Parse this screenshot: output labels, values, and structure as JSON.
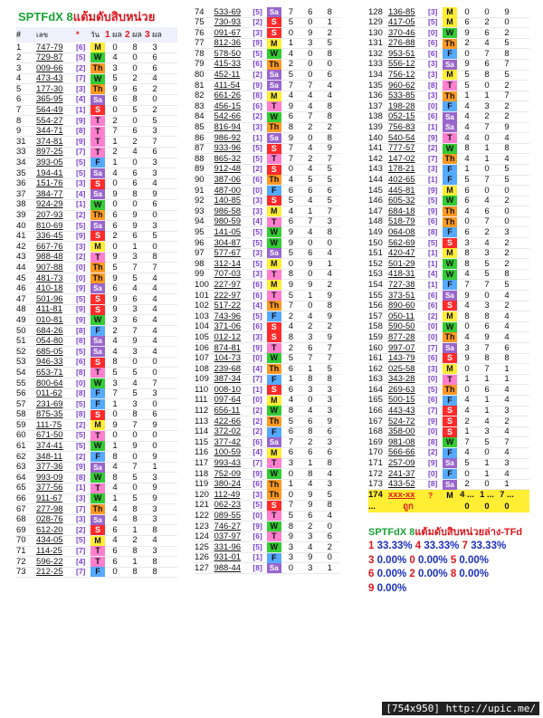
{
  "title_en": "SPTFdX 8",
  "title_th": "แต้มดับสิบหน่วย",
  "header": {
    "n": "#",
    "code": "เลข",
    "mark": "*",
    "day": "วัน",
    "p1": "1",
    "p1l": "ผล",
    "p2": "2",
    "p2l": "ผล",
    "p3": "3",
    "p3l": "ผล"
  },
  "day_colors": {
    "M": "#ffee33",
    "T": "#ff7fce",
    "W": "#33cc33",
    "Th": "#ff9922",
    "F": "#55aaff",
    "Sa": "#9966cc",
    "S": "#ff2a2a"
  },
  "col1": [
    [
      "1",
      "747-79",
      "[6]",
      "M",
      "0",
      "8",
      "3"
    ],
    [
      "2",
      "729-87",
      "[5]",
      "W",
      "4",
      "0",
      "6"
    ],
    [
      "3",
      "009-66",
      "[2]",
      "Th",
      "3",
      "0",
      "6"
    ],
    [
      "4",
      "473-43",
      "[7]",
      "W",
      "5",
      "2",
      "4"
    ],
    [
      "5",
      "177-30",
      "[3]",
      "Th",
      "9",
      "6",
      "2"
    ],
    [
      "6",
      "365-95",
      "[4]",
      "Sa",
      "6",
      "8",
      "0"
    ],
    [
      "7",
      "564-49",
      "[1]",
      "S",
      "0",
      "5",
      "2"
    ],
    [
      "8",
      "554-27",
      "[9]",
      "T",
      "2",
      "0",
      "5"
    ],
    [
      "9",
      "344-71",
      "[8]",
      "T",
      "7",
      "6",
      "3"
    ],
    [
      "31",
      "374-81",
      "[9]",
      "T",
      "1",
      "2",
      "7"
    ],
    [
      "33",
      "897-25",
      "[7]",
      "T",
      "2",
      "4",
      "6"
    ],
    [
      "34",
      "393-05",
      "[5]",
      "F",
      "1",
      "0",
      "3"
    ],
    [
      "35",
      "194-41",
      "[5]",
      "Sa",
      "4",
      "6",
      "3"
    ],
    [
      "36",
      "151-76",
      "[3]",
      "S",
      "0",
      "6",
      "4"
    ],
    [
      "37",
      "384-77",
      "[4]",
      "Sa",
      "9",
      "8",
      "9"
    ],
    [
      "38",
      "924-29",
      "[1]",
      "W",
      "0",
      "0",
      "6"
    ],
    [
      "39",
      "207-93",
      "[2]",
      "Th",
      "6",
      "9",
      "0"
    ],
    [
      "40",
      "810-69",
      "[5]",
      "Sa",
      "6",
      "9",
      "3"
    ],
    [
      "41",
      "336-45",
      "[9]",
      "S",
      "2",
      "6",
      "5"
    ],
    [
      "42",
      "667-76",
      "[3]",
      "M",
      "0",
      "1",
      "0"
    ],
    [
      "43",
      "988-48",
      "[2]",
      "T",
      "9",
      "3",
      "8"
    ],
    [
      "44",
      "907-88",
      "[0]",
      "Th",
      "5",
      "7",
      "7"
    ],
    [
      "45",
      "481-73",
      "[0]",
      "Th",
      "9",
      "5",
      "4"
    ],
    [
      "46",
      "410-18",
      "[9]",
      "Sa",
      "6",
      "4",
      "4"
    ],
    [
      "47",
      "501-96",
      "[5]",
      "S",
      "9",
      "6",
      "4"
    ],
    [
      "48",
      "411-81",
      "[9]",
      "S",
      "9",
      "3",
      "4"
    ],
    [
      "49",
      "010-81",
      "[9]",
      "W",
      "3",
      "6",
      "4"
    ],
    [
      "50",
      "684-26",
      "[8]",
      "F",
      "2",
      "7",
      "4"
    ],
    [
      "51",
      "054-80",
      "[8]",
      "Sa",
      "4",
      "9",
      "4"
    ],
    [
      "52",
      "685-05",
      "[5]",
      "Sa",
      "4",
      "3",
      "4"
    ],
    [
      "53",
      "946-33",
      "[6]",
      "S",
      "8",
      "0",
      "0"
    ],
    [
      "54",
      "653-71",
      "[8]",
      "T",
      "5",
      "5",
      "0"
    ],
    [
      "55",
      "800-64",
      "[0]",
      "W",
      "3",
      "4",
      "7"
    ],
    [
      "56",
      "011-62",
      "[8]",
      "F",
      "7",
      "5",
      "3"
    ],
    [
      "57",
      "231-69",
      "[5]",
      "F",
      "1",
      "3",
      "0"
    ],
    [
      "58",
      "875-35",
      "[8]",
      "S",
      "0",
      "8",
      "6"
    ],
    [
      "59",
      "111-75",
      "[2]",
      "M",
      "9",
      "7",
      "9"
    ],
    [
      "60",
      "671-50",
      "[5]",
      "T",
      "0",
      "0",
      "0"
    ],
    [
      "61",
      "374-41",
      "[5]",
      "W",
      "1",
      "9",
      "0"
    ],
    [
      "62",
      "348-11",
      "[2]",
      "F",
      "8",
      "0",
      "9"
    ],
    [
      "63",
      "377-36",
      "[9]",
      "Sa",
      "4",
      "7",
      "1"
    ],
    [
      "64",
      "993-09",
      "[8]",
      "W",
      "8",
      "5",
      "3"
    ],
    [
      "65",
      "377-56",
      "[1]",
      "T",
      "4",
      "0",
      "9"
    ],
    [
      "66",
      "911-67",
      "[3]",
      "W",
      "1",
      "5",
      "9"
    ],
    [
      "67",
      "277-98",
      "[7]",
      "Th",
      "4",
      "8",
      "3"
    ],
    [
      "68",
      "028-76",
      "[3]",
      "Sa",
      "4",
      "8",
      "3"
    ],
    [
      "69",
      "612-20",
      "[2]",
      "S",
      "6",
      "1",
      "8"
    ],
    [
      "70",
      "434-05",
      "[5]",
      "M",
      "4",
      "2",
      "4"
    ],
    [
      "71",
      "114-25",
      "[7]",
      "T",
      "6",
      "8",
      "3"
    ],
    [
      "72",
      "596-22",
      "[4]",
      "T",
      "6",
      "1",
      "8"
    ],
    [
      "73",
      "212-25",
      "[7]",
      "F",
      "0",
      "8",
      "8"
    ]
  ],
  "col2": [
    [
      "74",
      "533-69",
      "[5]",
      "Sa",
      "7",
      "6",
      "8"
    ],
    [
      "75",
      "730-93",
      "[2]",
      "S",
      "5",
      "0",
      "1"
    ],
    [
      "76",
      "091-67",
      "[3]",
      "S",
      "0",
      "9",
      "2"
    ],
    [
      "77",
      "812-36",
      "[9]",
      "M",
      "1",
      "3",
      "5"
    ],
    [
      "78",
      "578-50",
      "[5]",
      "W",
      "4",
      "0",
      "8"
    ],
    [
      "79",
      "415-33",
      "[6]",
      "Th",
      "2",
      "0",
      "0"
    ],
    [
      "80",
      "452-11",
      "[2]",
      "Sa",
      "5",
      "0",
      "6"
    ],
    [
      "81",
      "411-54",
      "[9]",
      "Sa",
      "7",
      "7",
      "4"
    ],
    [
      "82",
      "661-26",
      "[8]",
      "M",
      "4",
      "4",
      "4"
    ],
    [
      "83",
      "456-15",
      "[6]",
      "T",
      "9",
      "4",
      "8"
    ],
    [
      "84",
      "542-66",
      "[2]",
      "W",
      "6",
      "7",
      "8"
    ],
    [
      "85",
      "816-94",
      "[3]",
      "Th",
      "8",
      "2",
      "2"
    ],
    [
      "86",
      "986-92",
      "[1]",
      "Sa",
      "9",
      "0",
      "8"
    ],
    [
      "87",
      "933-96",
      "[5]",
      "S",
      "7",
      "4",
      "9"
    ],
    [
      "88",
      "865-32",
      "[5]",
      "T",
      "7",
      "2",
      "7"
    ],
    [
      "89",
      "912-48",
      "[2]",
      "S",
      "0",
      "4",
      "5"
    ],
    [
      "90",
      "387-06",
      "[6]",
      "Th",
      "4",
      "5",
      "5"
    ],
    [
      "91",
      "487-00",
      "[0]",
      "F",
      "6",
      "6",
      "6"
    ],
    [
      "92",
      "140-85",
      "[3]",
      "S",
      "5",
      "4",
      "5"
    ],
    [
      "93",
      "986-58",
      "[3]",
      "M",
      "4",
      "1",
      "7"
    ],
    [
      "94",
      "980-59",
      "[4]",
      "T",
      "6",
      "7",
      "3"
    ],
    [
      "95",
      "141-05",
      "[5]",
      "W",
      "9",
      "4",
      "8"
    ],
    [
      "96",
      "304-87",
      "[5]",
      "W",
      "9",
      "0",
      "0"
    ],
    [
      "97",
      "577-67",
      "[3]",
      "Sa",
      "5",
      "6",
      "4"
    ],
    [
      "98",
      "312-14",
      "[5]",
      "M",
      "0",
      "9",
      "1"
    ],
    [
      "99",
      "707-03",
      "[3]",
      "T",
      "8",
      "0",
      "4"
    ],
    [
      "100",
      "227-97",
      "[6]",
      "M",
      "9",
      "9",
      "2"
    ],
    [
      "101",
      "222-97",
      "[6]",
      "T",
      "5",
      "1",
      "9"
    ],
    [
      "102",
      "517-22",
      "[4]",
      "Th",
      "7",
      "0",
      "8"
    ],
    [
      "103",
      "743-96",
      "[5]",
      "F",
      "2",
      "4",
      "9"
    ],
    [
      "104",
      "371-06",
      "[6]",
      "S",
      "4",
      "2",
      "2"
    ],
    [
      "105",
      "012-12",
      "[3]",
      "S",
      "8",
      "3",
      "9"
    ],
    [
      "106",
      "874-81",
      "[9]",
      "T",
      "2",
      "6",
      "7"
    ],
    [
      "107",
      "104-73",
      "[0]",
      "W",
      "5",
      "7",
      "7"
    ],
    [
      "108",
      "239-68",
      "[4]",
      "Th",
      "6",
      "1",
      "5"
    ],
    [
      "109",
      "387-34",
      "[7]",
      "F",
      "1",
      "8",
      "8"
    ],
    [
      "110",
      "008-10",
      "[1]",
      "S",
      "6",
      "3",
      "3"
    ],
    [
      "111",
      "097-64",
      "[0]",
      "M",
      "4",
      "0",
      "3"
    ],
    [
      "112",
      "656-11",
      "[2]",
      "W",
      "8",
      "4",
      "3"
    ],
    [
      "113",
      "422-66",
      "[2]",
      "Th",
      "5",
      "6",
      "9"
    ],
    [
      "114",
      "372-02",
      "[2]",
      "F",
      "6",
      "8",
      "6"
    ],
    [
      "115",
      "377-42",
      "[6]",
      "Sa",
      "7",
      "2",
      "3"
    ],
    [
      "116",
      "100-59",
      "[4]",
      "M",
      "6",
      "6",
      "6"
    ],
    [
      "117",
      "993-43",
      "[7]",
      "T",
      "3",
      "1",
      "8"
    ],
    [
      "118",
      "752-09",
      "[9]",
      "W",
      "0",
      "8",
      "4"
    ],
    [
      "119",
      "380-24",
      "[6]",
      "Th",
      "1",
      "4",
      "3"
    ],
    [
      "120",
      "112-49",
      "[3]",
      "Th",
      "0",
      "9",
      "5"
    ],
    [
      "121",
      "062-23",
      "[5]",
      "S",
      "7",
      "9",
      "8"
    ],
    [
      "122",
      "089-55",
      "[0]",
      "T",
      "5",
      "6",
      "4"
    ],
    [
      "123",
      "746-27",
      "[9]",
      "W",
      "8",
      "2",
      "0"
    ],
    [
      "124",
      "037-97",
      "[6]",
      "T",
      "9",
      "3",
      "6"
    ],
    [
      "125",
      "331-96",
      "[5]",
      "W",
      "3",
      "4",
      "2"
    ],
    [
      "126",
      "931-01",
      "[1]",
      "F",
      "3",
      "9",
      "0"
    ],
    [
      "127",
      "988-44",
      "[8]",
      "Sa",
      "0",
      "3",
      "1"
    ]
  ],
  "col3": [
    [
      "128",
      "136-85",
      "[3]",
      "M",
      "0",
      "0",
      "9"
    ],
    [
      "129",
      "417-05",
      "[5]",
      "M",
      "6",
      "2",
      "0"
    ],
    [
      "130",
      "370-46",
      "[0]",
      "W",
      "9",
      "6",
      "2"
    ],
    [
      "131",
      "276-88",
      "[6]",
      "Th",
      "2",
      "4",
      "5"
    ],
    [
      "132",
      "953-51",
      "[6]",
      "F",
      "0",
      "7",
      "8"
    ],
    [
      "133",
      "556-12",
      "[3]",
      "Sa",
      "9",
      "6",
      "7"
    ],
    [
      "134",
      "756-12",
      "[3]",
      "M",
      "5",
      "8",
      "5"
    ],
    [
      "135",
      "960-62",
      "[8]",
      "T",
      "5",
      "0",
      "2"
    ],
    [
      "136",
      "533-85",
      "[3]",
      "Th",
      "1",
      "1",
      "7"
    ],
    [
      "137",
      "198-28",
      "[0]",
      "F",
      "4",
      "3",
      "2"
    ],
    [
      "138",
      "052-15",
      "[6]",
      "Sa",
      "4",
      "2",
      "2"
    ],
    [
      "139",
      "756-83",
      "[1]",
      "Sa",
      "4",
      "7",
      "9"
    ],
    [
      "140",
      "540-54",
      "[9]",
      "T",
      "4",
      "0",
      "4"
    ],
    [
      "141",
      "777-57",
      "[2]",
      "W",
      "8",
      "1",
      "8"
    ],
    [
      "142",
      "147-02",
      "[7]",
      "Th",
      "4",
      "1",
      "4"
    ],
    [
      "143",
      "178-21",
      "[3]",
      "F",
      "1",
      "0",
      "5"
    ],
    [
      "144",
      "402-65",
      "[1]",
      "F",
      "5",
      "7",
      "5"
    ],
    [
      "145",
      "445-81",
      "[9]",
      "M",
      "6",
      "0",
      "0"
    ],
    [
      "146",
      "605-32",
      "[5]",
      "W",
      "6",
      "4",
      "2"
    ],
    [
      "147",
      "684-18",
      "[9]",
      "Th",
      "4",
      "6",
      "0"
    ],
    [
      "148",
      "518-79",
      "[6]",
      "Th",
      "0",
      "7",
      "0"
    ],
    [
      "149",
      "064-08",
      "[8]",
      "F",
      "6",
      "2",
      "3"
    ],
    [
      "150",
      "562-69",
      "[5]",
      "S",
      "3",
      "4",
      "2"
    ],
    [
      "151",
      "420-47",
      "[1]",
      "M",
      "8",
      "3",
      "2"
    ],
    [
      "152",
      "501-29",
      "[1]",
      "W",
      "8",
      "5",
      "2"
    ],
    [
      "153",
      "418-31",
      "[4]",
      "W",
      "4",
      "5",
      "8"
    ],
    [
      "154",
      "727-38",
      "[1]",
      "F",
      "7",
      "7",
      "5"
    ],
    [
      "155",
      "373-51",
      "[6]",
      "Sa",
      "9",
      "0",
      "4"
    ],
    [
      "156",
      "890-60",
      "[6]",
      "S",
      "4",
      "3",
      "2"
    ],
    [
      "157",
      "050-11",
      "[2]",
      "M",
      "8",
      "8",
      "4"
    ],
    [
      "158",
      "590-50",
      "[0]",
      "W",
      "0",
      "6",
      "4"
    ],
    [
      "159",
      "877-28",
      "[0]",
      "Th",
      "4",
      "9",
      "4"
    ],
    [
      "160",
      "997-07",
      "[7]",
      "Sa",
      "3",
      "7",
      "6"
    ],
    [
      "161",
      "143-79",
      "[6]",
      "S",
      "9",
      "8",
      "8"
    ],
    [
      "162",
      "025-58",
      "[3]",
      "M",
      "0",
      "7",
      "1"
    ],
    [
      "163",
      "343-28",
      "[0]",
      "T",
      "1",
      "1",
      "1"
    ],
    [
      "164",
      "269-63",
      "[5]",
      "Th",
      "0",
      "6",
      "4"
    ],
    [
      "165",
      "500-15",
      "[6]",
      "F",
      "4",
      "1",
      "4"
    ],
    [
      "166",
      "443-43",
      "[7]",
      "S",
      "4",
      "1",
      "3"
    ],
    [
      "167",
      "524-72",
      "[9]",
      "S",
      "2",
      "4",
      "2"
    ],
    [
      "168",
      "358-00",
      "[0]",
      "S",
      "1",
      "3",
      "4"
    ],
    [
      "169",
      "981-08",
      "[8]",
      "W",
      "7",
      "5",
      "7"
    ],
    [
      "170",
      "566-66",
      "[2]",
      "F",
      "4",
      "0",
      "4"
    ],
    [
      "171",
      "257-09",
      "[9]",
      "Sa",
      "5",
      "1",
      "3"
    ],
    [
      "172",
      "241-37",
      "[0]",
      "F",
      "0",
      "1",
      "4"
    ],
    [
      "173",
      "433-52",
      "[8]",
      "Sa",
      "2",
      "0",
      "1"
    ]
  ],
  "sum": {
    "r1": [
      "174",
      "xxx-xx",
      "?",
      "M",
      "4 ...",
      "1 ...",
      "7 ..."
    ],
    "r2": [
      "...",
      "ถูก",
      "",
      "",
      "0",
      "0",
      "0"
    ]
  },
  "stats": {
    "title_en": "SPTFdX 8",
    "title_th": "แต้มดับสิบหน่วยล่าง-TFd",
    "lines": [
      [
        [
          "1",
          "33.33%"
        ],
        [
          "4",
          "33.33%"
        ],
        [
          "7",
          "33.33%"
        ]
      ],
      [
        [
          "3",
          "0.00%"
        ],
        [
          "0",
          "0.00%"
        ],
        [
          "5",
          "0.00%"
        ]
      ],
      [
        [
          "6",
          "0.00%"
        ],
        [
          "2",
          "0.00%"
        ],
        [
          "8",
          "0.00%"
        ]
      ],
      [
        [
          "9",
          "0.00%"
        ]
      ]
    ]
  },
  "watermark": "[754x950] http://upic.me/"
}
